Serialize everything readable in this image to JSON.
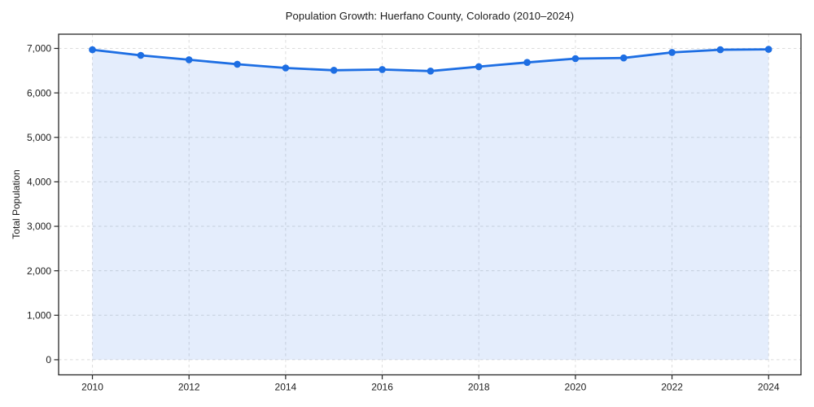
{
  "chart_data": {
    "type": "area",
    "title": "Population Growth: Huerfano County, Colorado (2010–2024)",
    "xlabel": "",
    "ylabel": "Total Population",
    "x": [
      2010,
      2011,
      2012,
      2013,
      2014,
      2015,
      2016,
      2017,
      2018,
      2019,
      2020,
      2021,
      2022,
      2023,
      2024
    ],
    "values": [
      6970,
      6845,
      6745,
      6645,
      6560,
      6510,
      6525,
      6490,
      6590,
      6685,
      6770,
      6785,
      6910,
      6970,
      6980
    ],
    "series_name": "Total Population",
    "xticks": [
      2010,
      2012,
      2014,
      2016,
      2018,
      2020,
      2022,
      2024
    ],
    "yticks": [
      0,
      1000,
      2000,
      3000,
      4000,
      5000,
      6000,
      7000
    ],
    "ytick_labels": [
      "0",
      "1,000",
      "2,000",
      "3,000",
      "4,000",
      "5,000",
      "6,000",
      "7,000"
    ],
    "xlim": [
      2009.3,
      2024.67
    ],
    "ylim": [
      -340,
      7320
    ],
    "grid": true,
    "grid_style": "dashed",
    "legend": null,
    "colors": {
      "line": "#1d6ee3",
      "marker": "#1d6ee3",
      "fill": "#1d6ee3",
      "fill_opacity": "0.12",
      "grid": "#dcdcdc",
      "spine": "#262626",
      "text": "#1c1c1c",
      "background": "#ffffff"
    }
  }
}
